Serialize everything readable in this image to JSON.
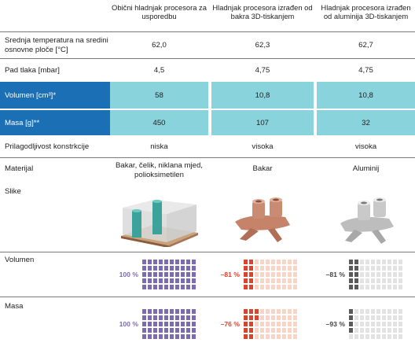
{
  "header": {
    "col1": "Obični hladnjak procesora za usporedbu",
    "col2": "Hladnjak procesora izrađen od bakra 3D-tiskanjem",
    "col3": "Hladnjak procesora izrađen od aluminija 3D-tiskanjem"
  },
  "rows": [
    {
      "label": "Srednja temperatura na sredini osnovne ploče [°C]",
      "v1": "62,0",
      "v2": "62,3",
      "v3": "62,7"
    },
    {
      "label": "Pad tlaka [mbar]",
      "v1": "4,5",
      "v2": "4,75",
      "v3": "4,75"
    },
    {
      "label": "Volumen [cm³]*",
      "v1": "58",
      "v2": "10,8",
      "v3": "10,8"
    },
    {
      "label": "Masa [g]**",
      "v1": "450",
      "v2": "107",
      "v3": "32"
    },
    {
      "label": "Prilagodljivost konstrkcije",
      "v1": "niska",
      "v2": "visoka",
      "v3": "visoka"
    },
    {
      "label": "Materijal",
      "v1": "Bakar, čelik, niklana mjed, polioksimetilen",
      "v2": "Bakar",
      "v3": "Aluminij"
    }
  ],
  "images_label": "Slike",
  "volumen": {
    "label": "Volumen",
    "p1": "100 %",
    "p2": "–81 %",
    "p3": "–81 %",
    "f1": 1.0,
    "f2": 0.19,
    "f3": 0.19
  },
  "masa": {
    "label": "Masa",
    "p1": "100 %",
    "p2": "–76 %",
    "p3": "–93 %",
    "f1": 1.0,
    "f2": 0.24,
    "f3": 0.07
  },
  "colors": {
    "purple": "#7b6cb0",
    "red": "#d9442e",
    "gray": "#5a5a5a",
    "blue": "#1b6fb5",
    "cyan": "#88d3dc"
  }
}
